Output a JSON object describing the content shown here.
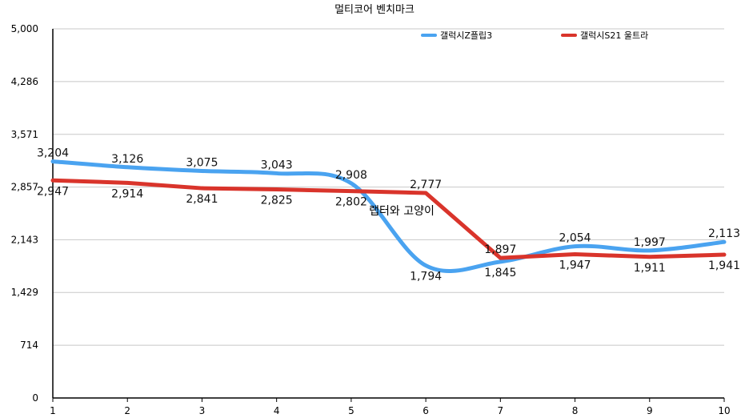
{
  "chart_data": {
    "type": "line",
    "title": "멀티코어 벤치마크",
    "xlabel": "",
    "ylabel": "",
    "categories": [
      "1",
      "2",
      "3",
      "4",
      "5",
      "6",
      "7",
      "8",
      "9",
      "10"
    ],
    "ylim": [
      0,
      5000
    ],
    "yticks": [
      "0",
      "714",
      "1,429",
      "2,143",
      "2,857",
      "3,571",
      "4,286",
      "5,000"
    ],
    "ytick_values": [
      0,
      714,
      1429,
      2143,
      2857,
      3571,
      4286,
      5000
    ],
    "grid": true,
    "legend_position": "top-right",
    "series": [
      {
        "name": "갤럭시Z플립3",
        "color": "#4aa3f0",
        "smooth": true,
        "values": [
          3204,
          3126,
          3075,
          3043,
          2908,
          1794,
          1845,
          2054,
          1997,
          2113
        ],
        "labels": [
          "3,204",
          "3,126",
          "3,075",
          "3,043",
          "2,908",
          "1,794",
          "1,845",
          "2,054",
          "1,997",
          "2,113"
        ]
      },
      {
        "name": "갤럭시S21 울트라",
        "color": "#d9342b",
        "smooth": false,
        "values": [
          2947,
          2914,
          2841,
          2825,
          2802,
          2777,
          1897,
          1947,
          1911,
          1941
        ],
        "labels": [
          "2,947",
          "2,914",
          "2,841",
          "2,825",
          "2,802",
          "2,777",
          "1,897",
          "1,947",
          "1,911",
          "1,941"
        ]
      }
    ],
    "annotation": "랩터와 고양이"
  }
}
